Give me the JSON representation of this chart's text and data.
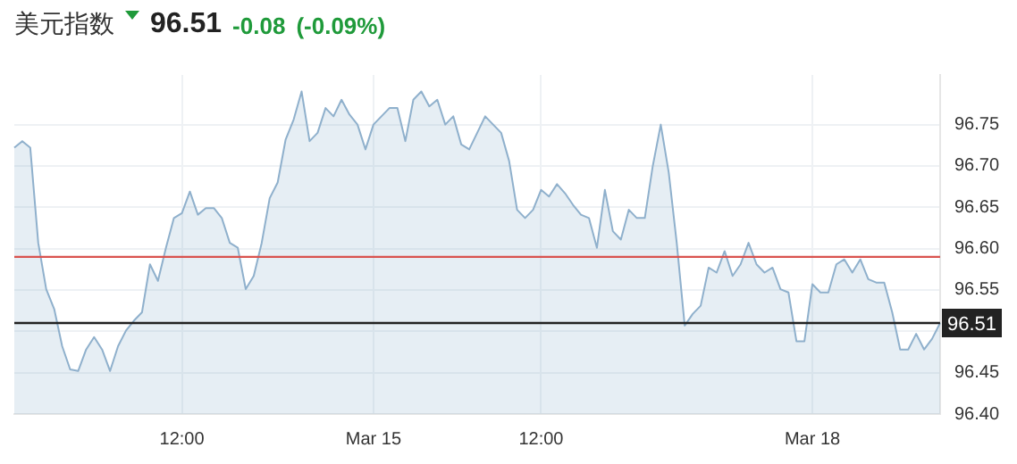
{
  "chart_data": {
    "type": "area",
    "title": "美元指数",
    "annotations": [
      "96.51",
      "-0.08",
      "(-0.09%)"
    ],
    "categories": [
      null,
      null,
      null,
      null,
      null,
      null,
      null,
      null,
      null,
      null,
      null,
      null,
      null,
      null,
      null,
      null,
      null,
      null,
      null,
      null,
      null,
      "12:00",
      null,
      null,
      null,
      null,
      null,
      null,
      null,
      null,
      null,
      null,
      null,
      null,
      null,
      null,
      null,
      null,
      null,
      null,
      null,
      null,
      null,
      null,
      null,
      "Mar 15",
      null,
      null,
      null,
      null,
      null,
      null,
      null,
      null,
      null,
      null,
      null,
      null,
      null,
      null,
      null,
      null,
      null,
      null,
      null,
      null,
      "12:00",
      null,
      null,
      null,
      null,
      null,
      null,
      null,
      null,
      null,
      null,
      null,
      null,
      null,
      null,
      null,
      null,
      null,
      null,
      null,
      null,
      null,
      null,
      null,
      null,
      null,
      null,
      null,
      null,
      null,
      null,
      null,
      null,
      null,
      "Mar 18",
      null,
      null,
      null,
      null,
      null,
      null,
      null,
      null,
      null,
      null,
      null,
      null,
      null,
      null,
      null,
      null
    ],
    "series": [
      {
        "color": "#8fb0cc",
        "values": [
          96.722,
          96.73,
          96.722,
          96.607,
          96.551,
          96.527,
          96.482,
          96.454,
          96.452,
          96.478,
          96.493,
          96.478,
          96.452,
          96.482,
          96.501,
          96.513,
          96.523,
          96.581,
          96.561,
          96.601,
          96.637,
          96.643,
          96.669,
          96.641,
          96.649,
          96.649,
          96.637,
          96.607,
          96.601,
          96.551,
          96.567,
          96.607,
          96.661,
          96.68,
          96.732,
          96.756,
          96.79,
          96.73,
          96.74,
          96.77,
          96.76,
          96.78,
          96.762,
          96.75,
          96.72,
          96.75,
          96.76,
          96.77,
          96.77,
          96.73,
          96.78,
          96.79,
          96.772,
          96.78,
          96.75,
          96.76,
          96.726,
          96.72,
          96.74,
          96.76,
          96.75,
          96.74,
          96.706,
          96.647,
          96.637,
          96.647,
          96.671,
          96.663,
          96.678,
          96.667,
          96.653,
          96.641,
          96.637,
          96.601,
          96.671,
          96.621,
          96.611,
          96.647,
          96.637,
          96.637,
          96.7,
          96.75,
          96.692,
          96.607,
          96.507,
          96.521,
          96.531,
          96.577,
          96.571,
          96.597,
          96.567,
          96.581,
          96.607,
          96.581,
          96.571,
          96.577,
          96.551,
          96.547,
          96.488,
          96.488,
          96.557,
          96.547,
          96.547,
          96.581,
          96.587,
          96.571,
          96.587,
          96.563,
          96.559,
          96.559,
          96.523,
          96.478,
          96.478,
          96.497,
          96.478,
          96.491,
          96.51
        ]
      }
    ],
    "ylim": [
      96.4,
      96.81
    ],
    "yticks": [
      {
        "value": 96.4,
        "label": "96.40"
      },
      {
        "value": 96.45,
        "label": "96.45"
      },
      {
        "value": 96.5,
        "label": null
      },
      {
        "value": 96.55,
        "label": "96.55"
      },
      {
        "value": 96.6,
        "label": "96.60"
      },
      {
        "value": 96.65,
        "label": "96.65"
      },
      {
        "value": 96.7,
        "label": "96.70"
      },
      {
        "value": 96.75,
        "label": "96.75"
      }
    ],
    "ref_lines": [
      {
        "axis": "y",
        "value": 96.59,
        "color": "#d9534f"
      },
      {
        "axis": "y",
        "value": 96.51,
        "label": "96.51",
        "color": "#222222"
      }
    ],
    "grid": true,
    "legend": false,
    "marker": "none"
  }
}
